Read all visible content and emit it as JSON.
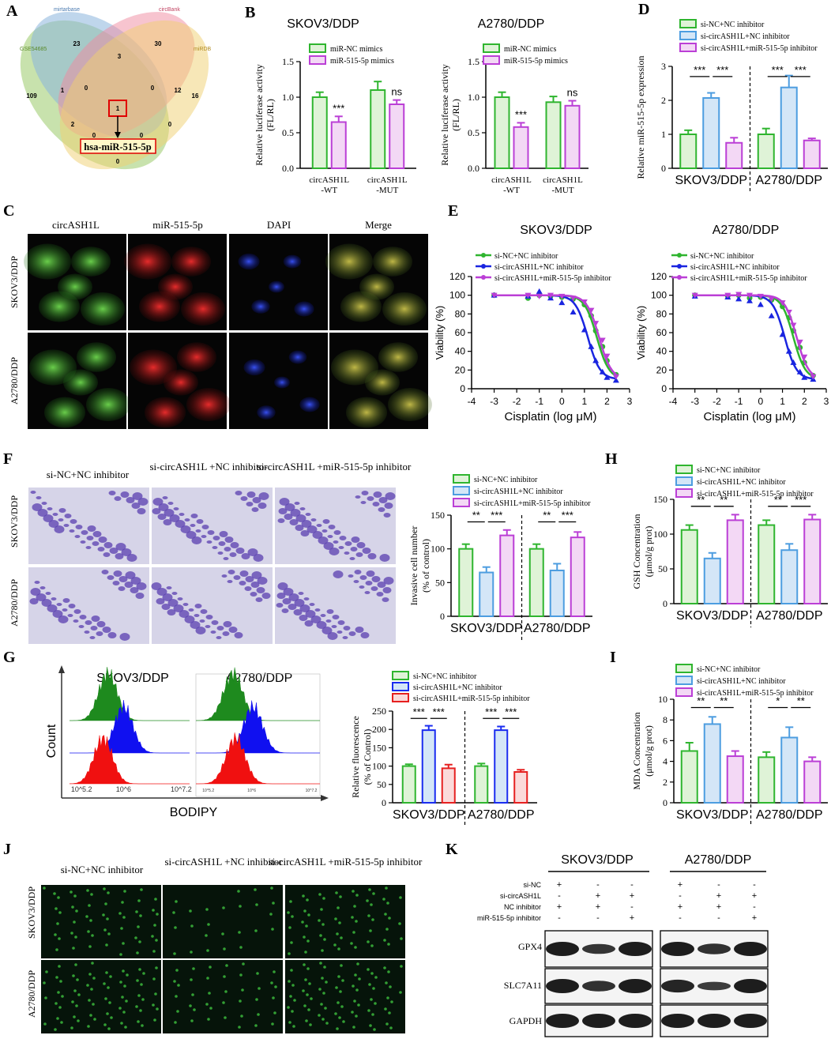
{
  "colors": {
    "green": "#2fb52f",
    "purple": "#bb3fd6",
    "blue": "#4d9de0",
    "darkblue": "#1a2cf0",
    "red": "#e62020",
    "lightgreen": "#dff3d7",
    "lightblue": "#d4e6f7",
    "lightpurple": "#f3d8f5",
    "lightred": "#fbdada"
  },
  "panelA": {
    "letter": "A",
    "sets": [
      "GSE54685",
      "mirtarbase",
      "circBank",
      "miRDB"
    ],
    "region_counts": [
      "109",
      "23",
      "30",
      "16",
      "1",
      "3",
      "12",
      "0",
      "0",
      "2",
      "1",
      "0",
      "0",
      "0",
      "0"
    ],
    "target_label": "hsa-miR-515-5p"
  },
  "panelB": {
    "letter": "B",
    "legend": [
      "miR-NC mimics",
      "miR-515-5p mimics"
    ],
    "ylabel": "Relative luciferase activity (FL/RL)",
    "categories": [
      "circASH1L -WT",
      "circASH1L -MUT"
    ],
    "charts": [
      {
        "title": "SKOV3/DDP",
        "series": [
          {
            "name": "miR-NC mimics",
            "values": [
              1.0,
              1.1
            ]
          },
          {
            "name": "miR-515-5p mimics",
            "values": [
              0.65,
              0.9
            ]
          }
        ],
        "errors": [
          [
            0.07,
            0.12
          ],
          [
            0.08,
            0.06
          ]
        ],
        "marks": [
          "***",
          "ns"
        ],
        "ylim": [
          0,
          1.5
        ],
        "ticks": [
          "0.0",
          "0.5",
          "1.0",
          "1.5"
        ]
      },
      {
        "title": "A2780/DDP",
        "series": [
          {
            "name": "miR-NC mimics",
            "values": [
              1.0,
              0.93
            ]
          },
          {
            "name": "miR-515-5p mimics",
            "values": [
              0.58,
              0.88
            ]
          }
        ],
        "errors": [
          [
            0.07,
            0.08
          ],
          [
            0.06,
            0.07
          ]
        ],
        "marks": [
          "***",
          "ns"
        ],
        "ylim": [
          0,
          1.5
        ],
        "ticks": [
          "0.0",
          "0.5",
          "1.0",
          "1.5"
        ]
      }
    ]
  },
  "panelC": {
    "letter": "C",
    "columns": [
      "circASH1L",
      "miR-515-5p",
      "DAPI",
      "Merge"
    ],
    "rows": [
      "SKOV3/DDP",
      "A2780/DDP"
    ]
  },
  "panelD": {
    "letter": "D",
    "legend": [
      "si-NC+NC inhibitor",
      "si-circASH1L+NC inhibitor",
      "si-circASH1L+miR-515-5p inhibitor"
    ],
    "ylabel": "Relative miR-515-5p expression",
    "groups": [
      "SKOV3/DDP",
      "A2780/DDP"
    ],
    "values": [
      [
        1.0,
        2.07,
        0.75
      ],
      [
        1.0,
        2.38,
        0.82
      ]
    ],
    "errors": [
      [
        0.12,
        0.15,
        0.15
      ],
      [
        0.17,
        0.35,
        0.06
      ]
    ],
    "sig": [
      "***",
      "***",
      "***",
      "***"
    ],
    "ylim": [
      0,
      3
    ],
    "ticks": [
      "0",
      "1",
      "2",
      "3"
    ]
  },
  "panelE": {
    "letter": "E",
    "legend": [
      "si-NC+NC inhibitor",
      "si-circASH1L+NC inhibitor",
      "si-circASH1L+miR-515-5p inhibitor"
    ],
    "xlabel": "Cisplatin (log μM)",
    "ylabel": "Viability (%)",
    "xticks": [
      "-4",
      "-3",
      "-2",
      "-1",
      "0",
      "1",
      "2",
      "3"
    ],
    "yticks": [
      "0",
      "20",
      "40",
      "60",
      "80",
      "100",
      "120"
    ],
    "x": [
      -3.0,
      -1.5,
      -1.0,
      -0.5,
      0.0,
      0.5,
      1.0,
      1.3,
      1.5,
      1.8,
      2.0,
      2.4
    ],
    "charts": [
      {
        "title": "SKOV3/DDP",
        "series": [
          {
            "name": "si-NC+NC inhibitor",
            "values": [
              100,
              97,
              100,
              99,
              98,
              96,
              90,
              78,
              62,
              45,
              30,
              15
            ]
          },
          {
            "name": "si-circASH1L+NC inhibitor",
            "values": [
              100,
              99,
              104,
              97,
              92,
              82,
              63,
              45,
              30,
              18,
              12,
              9
            ]
          },
          {
            "name": "si-circASH1L+miR-515-5p inhibitor",
            "values": [
              100,
              100,
              99,
              100,
              99,
              97,
              93,
              84,
              70,
              52,
              35,
              13
            ]
          }
        ],
        "ec50": [
          1.55,
          1.15,
          1.65
        ]
      },
      {
        "title": "A2780/DDP",
        "series": [
          {
            "name": "si-NC+NC inhibitor",
            "values": [
              100,
              99,
              100,
              97,
              98,
              95,
              88,
              76,
              62,
              44,
              28,
              14
            ]
          },
          {
            "name": "si-circASH1L+NC inhibitor",
            "values": [
              99,
              98,
              96,
              94,
              90,
              78,
              58,
              40,
              28,
              18,
              12,
              10
            ]
          },
          {
            "name": "si-circASH1L+miR-515-5p inhibitor",
            "values": [
              100,
              100,
              101,
              100,
              99,
              96,
              92,
              82,
              68,
              50,
              34,
              13
            ]
          }
        ],
        "ec50": [
          1.5,
          1.1,
          1.65
        ]
      }
    ]
  },
  "panelF": {
    "letter": "F",
    "columns": [
      "si-NC+NC inhibitor",
      "si-circASH1L +NC inhibitor",
      "si-circASH1L +miR-515-5p inhibitor"
    ],
    "rows": [
      "SKOV3/DDP",
      "A2780/DDP"
    ],
    "legend": [
      "si-NC+NC inhibitor",
      "si-circASH1L+NC inhibitor",
      "si-circASH1L+miR-515-5p inhibitor"
    ],
    "ylabel": "Invasive cell number (% of control)",
    "groups": [
      "SKOV3/DDP",
      "A2780/DDP"
    ],
    "values": [
      [
        100,
        65,
        120
      ],
      [
        100,
        68,
        117
      ]
    ],
    "errors": [
      [
        7,
        8,
        8
      ],
      [
        7,
        10,
        8
      ]
    ],
    "sig": [
      "**",
      "***",
      "**",
      "***"
    ],
    "ylim": [
      0,
      150
    ],
    "ticks": [
      "0",
      "50",
      "100",
      "150"
    ]
  },
  "panelG": {
    "letter": "G",
    "titles": [
      "SKOV3/DDP",
      "A2780/DDP"
    ],
    "count_label": "Count",
    "bodipy_label": "BODIPY",
    "axis_ticks": [
      "10^5.2",
      "10^6",
      "10^7.2"
    ],
    "legend": [
      "si-NC+NC inhibitor",
      "si-circASH1L+NC inhibitor",
      "si-circASH1L+miR-515-5p inhibitor"
    ],
    "ylabel": "Relative fluorescence (% of Control)",
    "groups": [
      "SKOV3/DDP",
      "A2780/DDP"
    ],
    "values": [
      [
        100,
        198,
        94
      ],
      [
        100,
        198,
        84
      ]
    ],
    "errors": [
      [
        5,
        12,
        10
      ],
      [
        7,
        10,
        6
      ]
    ],
    "sig": [
      "***",
      "***",
      "***",
      "***"
    ],
    "ylim": [
      0,
      250
    ],
    "ticks": [
      "0",
      "50",
      "100",
      "150",
      "200",
      "250"
    ]
  },
  "panelH": {
    "letter": "H",
    "legend": [
      "si-NC+NC inhibitor",
      "si-circASH1L+NC inhibitor",
      "si-circASH1L+miR-515-5p inhibitor"
    ],
    "ylabel": "GSH Concentration (μmol/g prot)",
    "groups": [
      "SKOV3/DDP",
      "A2780/DDP"
    ],
    "values": [
      [
        106,
        65,
        120
      ],
      [
        113,
        77,
        121
      ]
    ],
    "errors": [
      [
        7,
        8,
        8
      ],
      [
        7,
        9,
        7
      ]
    ],
    "sig": [
      "**",
      "**",
      "**",
      "***"
    ],
    "ylim": [
      0,
      150
    ],
    "ticks": [
      "0",
      "50",
      "100",
      "150"
    ]
  },
  "panelI": {
    "letter": "I",
    "legend": [
      "si-NC+NC inhibitor",
      "si-circASH1L+NC inhibitor",
      "si-circASH1L+miR-515-5p inhibitor"
    ],
    "ylabel": "MDA Concentration (μmol/g prot)",
    "groups": [
      "SKOV3/DDP",
      "A2780/DDP"
    ],
    "values": [
      [
        5.0,
        7.6,
        4.5
      ],
      [
        4.4,
        6.3,
        4.0
      ]
    ],
    "errors": [
      [
        0.8,
        0.7,
        0.5
      ],
      [
        0.5,
        1.0,
        0.4
      ]
    ],
    "sig": [
      "**",
      "**",
      "*",
      "**"
    ],
    "ylim": [
      0,
      10
    ],
    "ticks": [
      "0",
      "2",
      "4",
      "6",
      "8",
      "10"
    ]
  },
  "panelJ": {
    "letter": "J",
    "columns": [
      "si-NC+NC inhibitor",
      "si-circASH1L +NC inhibitor",
      "si-circASH1L +miR-515-5p inhibitor"
    ],
    "rows": [
      "SKOV3/DDP",
      "A2780/DDP"
    ]
  },
  "panelK": {
    "letter": "K",
    "groups": [
      "SKOV3/DDP",
      "A2780/DDP"
    ],
    "conditions": [
      "si-NC",
      "si-circASH1L",
      "NC inhibitor",
      "miR-515-5p inhibitor"
    ],
    "signs": [
      [
        "+",
        "-",
        "-"
      ],
      [
        "-",
        "+",
        "+"
      ],
      [
        "+",
        "+",
        "-"
      ],
      [
        "-",
        "-",
        "+"
      ]
    ],
    "proteins": [
      "GPX4",
      "SLC7A11",
      "GAPDH"
    ]
  }
}
